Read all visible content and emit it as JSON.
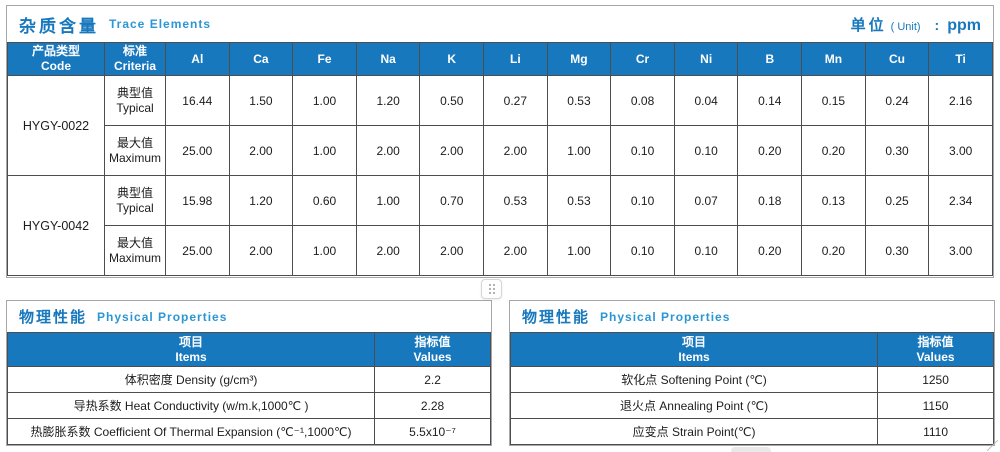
{
  "colors": {
    "accent": "#1878be",
    "accent_light": "#2b96d4",
    "header_bg": "#1878be",
    "border_dark": "#4d4d4d",
    "border_light": "#a3a8ad"
  },
  "trace": {
    "title_zh": "杂质含量",
    "title_en": "Trace Elements",
    "unit_zh": "单位",
    "unit_en": "( Unit)",
    "unit_colon": ":",
    "unit_value": "ppm",
    "head": {
      "code_zh": "产品类型",
      "code_en": "Code",
      "criteria_zh": "标准",
      "criteria_en": "Criteria"
    },
    "elements": [
      "Al",
      "Ca",
      "Fe",
      "Na",
      "K",
      "Li",
      "Mg",
      "Cr",
      "Ni",
      "B",
      "Mn",
      "Cu",
      "Ti"
    ],
    "labels": {
      "typical_zh": "典型值",
      "typical_en": "Typical",
      "maximum_zh": "最大值",
      "maximum_en": "Maximum"
    },
    "products": [
      {
        "code": "HYGY-0022",
        "typical": [
          "16.44",
          "1.50",
          "1.00",
          "1.20",
          "0.50",
          "0.27",
          "0.53",
          "0.08",
          "0.04",
          "0.14",
          "0.15",
          "0.24",
          "2.16"
        ],
        "maximum": [
          "25.00",
          "2.00",
          "1.00",
          "2.00",
          "2.00",
          "2.00",
          "1.00",
          "0.10",
          "0.10",
          "0.20",
          "0.20",
          "0.30",
          "3.00"
        ]
      },
      {
        "code": "HYGY-0042",
        "typical": [
          "15.98",
          "1.20",
          "0.60",
          "1.00",
          "0.70",
          "0.53",
          "0.53",
          "0.10",
          "0.07",
          "0.18",
          "0.13",
          "0.25",
          "2.34"
        ],
        "maximum": [
          "25.00",
          "2.00",
          "1.00",
          "2.00",
          "2.00",
          "2.00",
          "1.00",
          "0.10",
          "0.10",
          "0.20",
          "0.20",
          "0.30",
          "3.00"
        ]
      }
    ]
  },
  "phys_left": {
    "title_zh": "物理性能",
    "title_en": "Physical Properties",
    "head": {
      "items_zh": "项目",
      "items_en": "Items",
      "values_zh": "指标值",
      "values_en": "Values"
    },
    "rows": [
      {
        "item": "体积密度 Density (g/cm³)",
        "value": "2.2"
      },
      {
        "item": "导热系数 Heat Conductivity (w/m.k,1000℃ )",
        "value": "2.28"
      },
      {
        "item": "热膨胀系数 Coefficient Of Thermal Expansion (℃⁻¹,1000℃)",
        "value": "5.5x10⁻⁷"
      }
    ]
  },
  "phys_right": {
    "title_zh": "物理性能",
    "title_en": "Physical Properties",
    "head": {
      "items_zh": "项目",
      "items_en": "Items",
      "values_zh": "指标值",
      "values_en": "Values"
    },
    "rows": [
      {
        "item": "软化点 Softening Point (℃)",
        "value": "1250"
      },
      {
        "item": "退火点 Annealing Point (℃)",
        "value": "1150"
      },
      {
        "item": "应变点 Strain Point(℃)",
        "value": "1110"
      }
    ]
  }
}
